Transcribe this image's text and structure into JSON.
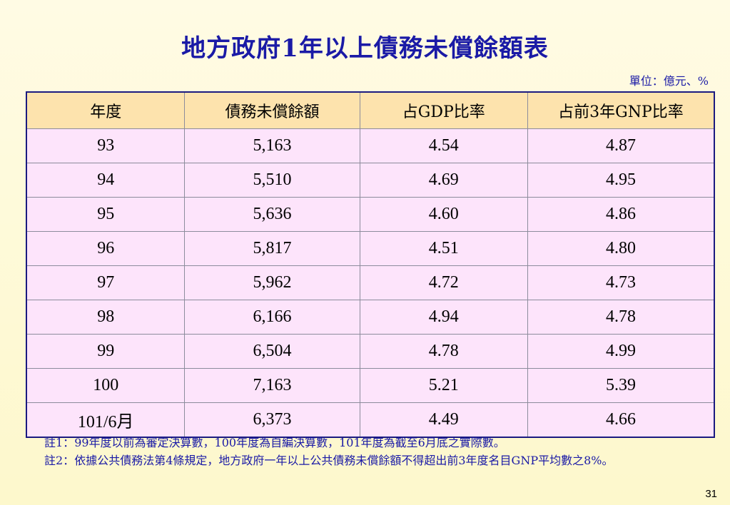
{
  "title": "地方政府1年以上債務未償餘額表",
  "unit": "單位：億元、%",
  "table": {
    "headers": [
      "年度",
      "債務未償餘額",
      "占GDP比率",
      "占前3年GNP比率"
    ],
    "rows": [
      [
        "93",
        "5,163",
        "4.54",
        "4.87"
      ],
      [
        "94",
        "5,510",
        "4.69",
        "4.95"
      ],
      [
        "95",
        "5,636",
        "4.60",
        "4.86"
      ],
      [
        "96",
        "5,817",
        "4.51",
        "4.80"
      ],
      [
        "97",
        "5,962",
        "4.72",
        "4.73"
      ],
      [
        "98",
        "6,166",
        "4.94",
        "4.78"
      ],
      [
        "99",
        "6,504",
        "4.78",
        "4.99"
      ],
      [
        "100",
        "7,163",
        "5.21",
        "5.39"
      ],
      [
        "101/6月",
        "6,373",
        "4.49",
        "4.66"
      ]
    ]
  },
  "notes": [
    {
      "label": "註1：",
      "text": "99年度以前為審定決算數，100年度為自編決算數，101年度為截至6月底之實際數。"
    },
    {
      "label": "註2：",
      "text": "依據公共債務法第4條規定，地方政府一年以上公共債務未償餘額不得超出前3年度名目GNP平均數之8%。"
    }
  ],
  "page_number": "31",
  "colors": {
    "title": "#1a1aa6",
    "header_bg": "#fde3ad",
    "row_bg": "#fde4fb"
  }
}
